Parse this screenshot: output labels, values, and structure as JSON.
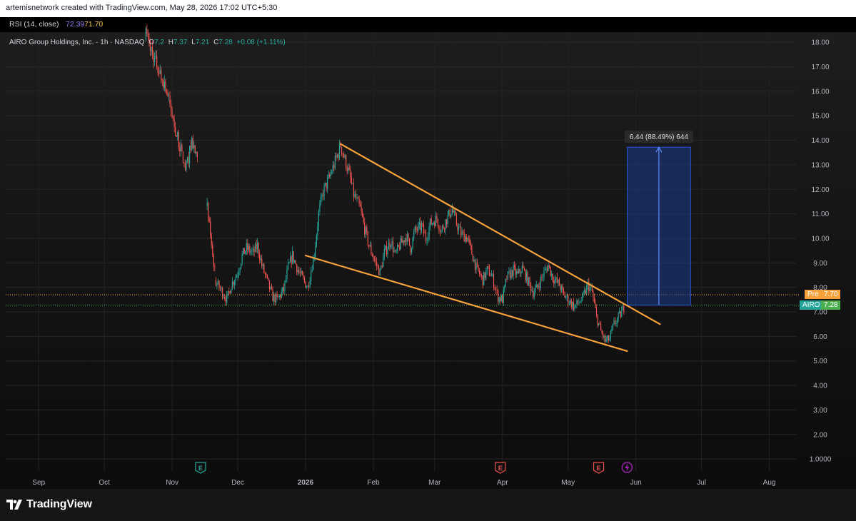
{
  "header": {
    "attribution": "artemisnetwork created with TradingView.com, May 28, 2026 17:02 UTC+5:30"
  },
  "rsi": {
    "label": "RSI (14, close)",
    "value1": "72.39",
    "value2": "71.70"
  },
  "legend": {
    "name": "AIRO Group Holdings, Inc. · 1h · NASDAQ",
    "open_label": "O",
    "open": "7.2",
    "high_label": "H",
    "high": "7.37",
    "low_label": "L",
    "low": "7.21",
    "close_label": "C",
    "close": "7.28",
    "change": "+0.08 (+1.11%)"
  },
  "measure": {
    "label": "6.44 (88.49%) 644"
  },
  "price_tags": {
    "pre_label": "Pre",
    "pre_value": "7.70",
    "ticker_label": "AIRO",
    "ticker_value": "7.28"
  },
  "footer": {
    "brand": "TradingView"
  },
  "colors": {
    "up": "#26a69a",
    "down": "#ef5350",
    "trendline": "#f7a23b",
    "measure_fill": "#1e3a8a",
    "pre": "#f7a23b",
    "ticker": "#4caf50"
  },
  "event_markers": [
    {
      "month": "Nov",
      "type": "earnings",
      "letter": "E",
      "color": "#26a69a"
    },
    {
      "month": "Apr",
      "type": "earnings",
      "letter": "E",
      "color": "#ef5350"
    },
    {
      "month": "May",
      "type": "earnings",
      "letter": "E",
      "color": "#ef5350"
    },
    {
      "month": "Jun",
      "type": "event",
      "icon": "lightning-icon",
      "color": "#9c27b0"
    }
  ],
  "chart_data": {
    "type": "line",
    "subtype": "candlestick",
    "symbol": "AIRO",
    "interval": "1h",
    "x_axis_labels": [
      "Sep",
      "Oct",
      "Nov",
      "Dec",
      "2026",
      "Feb",
      "Mar",
      "Apr",
      "May",
      "Jun",
      "Jul",
      "Aug"
    ],
    "y_axis_labels": [
      "1.0000",
      "2.00",
      "3.00",
      "4.00",
      "5.00",
      "6.00",
      "7.00",
      "8.00",
      "9.00",
      "10.00",
      "11.00",
      "12.00",
      "13.00",
      "14.00",
      "15.00",
      "16.00",
      "17.00",
      "18.00"
    ],
    "ylim": [
      0.6,
      18.4
    ],
    "grid": true,
    "series": [
      {
        "price_path": [
          [
            "2025-10-20",
            18.3
          ],
          [
            "2025-10-22",
            17.8
          ],
          [
            "2025-10-24",
            17.3
          ],
          [
            "2025-10-27",
            16.6
          ],
          [
            "2025-10-29",
            16.2
          ],
          [
            "2025-11-01",
            15.0
          ],
          [
            "2025-11-03",
            14.2
          ],
          [
            "2025-11-05",
            13.6
          ],
          [
            "2025-11-07",
            12.8
          ],
          [
            "2025-11-08",
            13.1
          ],
          [
            "2025-11-10",
            14.0
          ],
          [
            "2025-11-12",
            13.3
          ],
          [
            "2025-11-13",
            12.9
          ],
          [
            "2025-11-17",
            11.2
          ],
          [
            "2025-11-19",
            9.8
          ],
          [
            "2025-11-21",
            8.2
          ],
          [
            "2025-11-24",
            7.8
          ],
          [
            "2025-11-26",
            7.5
          ],
          [
            "2025-11-28",
            8.1
          ],
          [
            "2025-12-01",
            8.6
          ],
          [
            "2025-12-03",
            9.3
          ],
          [
            "2025-12-05",
            9.6
          ],
          [
            "2025-12-08",
            9.4
          ],
          [
            "2025-12-10",
            9.7
          ],
          [
            "2025-12-12",
            8.9
          ],
          [
            "2025-12-15",
            8.1
          ],
          [
            "2025-12-17",
            7.6
          ],
          [
            "2025-12-19",
            7.5
          ],
          [
            "2025-12-22",
            7.9
          ],
          [
            "2025-12-24",
            8.8
          ],
          [
            "2025-12-26",
            9.3
          ],
          [
            "2025-12-29",
            8.6
          ],
          [
            "2025-12-31",
            8.3
          ],
          [
            "2026-01-02",
            8.0
          ],
          [
            "2026-01-05",
            9.4
          ],
          [
            "2026-01-07",
            11.0
          ],
          [
            "2026-01-09",
            11.9
          ],
          [
            "2026-01-12",
            12.5
          ],
          [
            "2026-01-14",
            13.0
          ],
          [
            "2026-01-16",
            13.5
          ],
          [
            "2026-01-17",
            13.8
          ],
          [
            "2026-01-19",
            13.2
          ],
          [
            "2026-01-21",
            12.6
          ],
          [
            "2026-01-23",
            11.8
          ],
          [
            "2026-01-26",
            11.2
          ],
          [
            "2026-01-28",
            10.4
          ],
          [
            "2026-01-30",
            9.7
          ],
          [
            "2026-02-02",
            9.0
          ],
          [
            "2026-02-04",
            8.6
          ],
          [
            "2026-02-06",
            9.4
          ],
          [
            "2026-02-09",
            9.9
          ],
          [
            "2026-02-11",
            9.3
          ],
          [
            "2026-02-13",
            9.7
          ],
          [
            "2026-02-16",
            10.1
          ],
          [
            "2026-02-18",
            9.6
          ],
          [
            "2026-02-20",
            10.3
          ],
          [
            "2026-02-23",
            10.5
          ],
          [
            "2026-02-25",
            10.0
          ],
          [
            "2026-02-27",
            10.6
          ],
          [
            "2026-03-02",
            10.8
          ],
          [
            "2026-03-04",
            10.3
          ],
          [
            "2026-03-06",
            10.7
          ],
          [
            "2026-03-09",
            11.2
          ],
          [
            "2026-03-11",
            10.6
          ],
          [
            "2026-03-13",
            10.2
          ],
          [
            "2026-03-16",
            10.0
          ],
          [
            "2026-03-18",
            9.4
          ],
          [
            "2026-03-20",
            8.8
          ],
          [
            "2026-03-23",
            8.3
          ],
          [
            "2026-03-25",
            8.7
          ],
          [
            "2026-03-27",
            8.5
          ],
          [
            "2026-03-30",
            7.6
          ],
          [
            "2026-04-01",
            7.5
          ],
          [
            "2026-04-03",
            8.4
          ],
          [
            "2026-04-06",
            8.7
          ],
          [
            "2026-04-08",
            8.5
          ],
          [
            "2026-04-10",
            8.8
          ],
          [
            "2026-04-13",
            8.2
          ],
          [
            "2026-04-15",
            7.8
          ],
          [
            "2026-04-17",
            8.0
          ],
          [
            "2026-04-20",
            8.6
          ],
          [
            "2026-04-22",
            8.9
          ],
          [
            "2026-04-24",
            8.4
          ],
          [
            "2026-04-27",
            8.1
          ],
          [
            "2026-04-29",
            7.7
          ],
          [
            "2026-05-01",
            7.5
          ],
          [
            "2026-05-04",
            7.2
          ],
          [
            "2026-05-06",
            7.4
          ],
          [
            "2026-05-08",
            7.6
          ],
          [
            "2026-05-10",
            8.1
          ],
          [
            "2026-05-12",
            7.8
          ],
          [
            "2026-05-14",
            6.8
          ],
          [
            "2026-05-16",
            6.2
          ],
          [
            "2026-05-18",
            5.8
          ],
          [
            "2026-05-20",
            5.9
          ],
          [
            "2026-05-22",
            6.5
          ],
          [
            "2026-05-25",
            6.9
          ],
          [
            "2026-05-27",
            7.28
          ]
        ]
      }
    ],
    "trendlines": [
      {
        "name": "upper",
        "from": [
          "2026-01-17",
          13.85
        ],
        "to": [
          "2026-06-12",
          6.5
        ]
      },
      {
        "name": "lower",
        "from": [
          "2026-01-01",
          9.3
        ],
        "to": [
          "2026-05-28",
          5.4
        ]
      }
    ],
    "measure_box": {
      "from_date": "2026-05-28",
      "to_date": "2026-06-26",
      "low": 7.28,
      "high": 13.72
    },
    "price_lines": [
      7.7,
      7.28
    ]
  }
}
